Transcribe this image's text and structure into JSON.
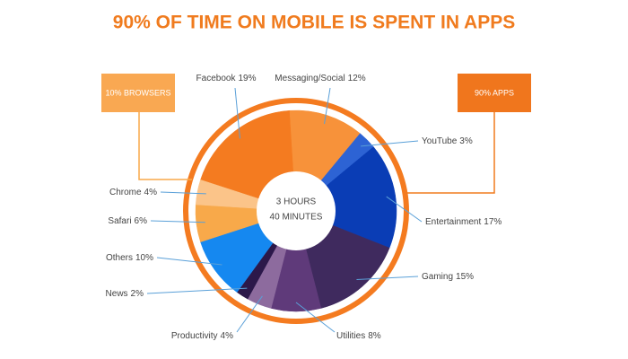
{
  "chart_data": {
    "type": "pie",
    "title": "90% OF TIME ON MOBILE IS SPENT IN APPS",
    "categories": [
      "Facebook",
      "Messaging/Social",
      "YouTube",
      "Entertainment",
      "Gaming",
      "Utilities",
      "Productivity",
      "News",
      "Others",
      "Safari",
      "Chrome"
    ],
    "values": [
      19,
      12,
      3,
      17,
      15,
      8,
      4,
      2,
      10,
      6,
      4
    ],
    "value_labels": [
      "19%",
      "12%",
      "3%",
      "17%",
      "15%",
      "8%",
      "4%",
      "2%",
      "10%",
      "6%",
      "4%"
    ],
    "colors": [
      "#f47b20",
      "#f7923a",
      "#2d63d4",
      "#0a3db5",
      "#3f2a5e",
      "#5f3a7a",
      "#8d6b9e",
      "#2c184a",
      "#1588f0",
      "#f8a94a",
      "#fbc489"
    ],
    "center_text": [
      "3 HOURS",
      "40 MINUTES"
    ],
    "annotations": [
      "10% BROWSERS",
      "90% APPS"
    ]
  }
}
